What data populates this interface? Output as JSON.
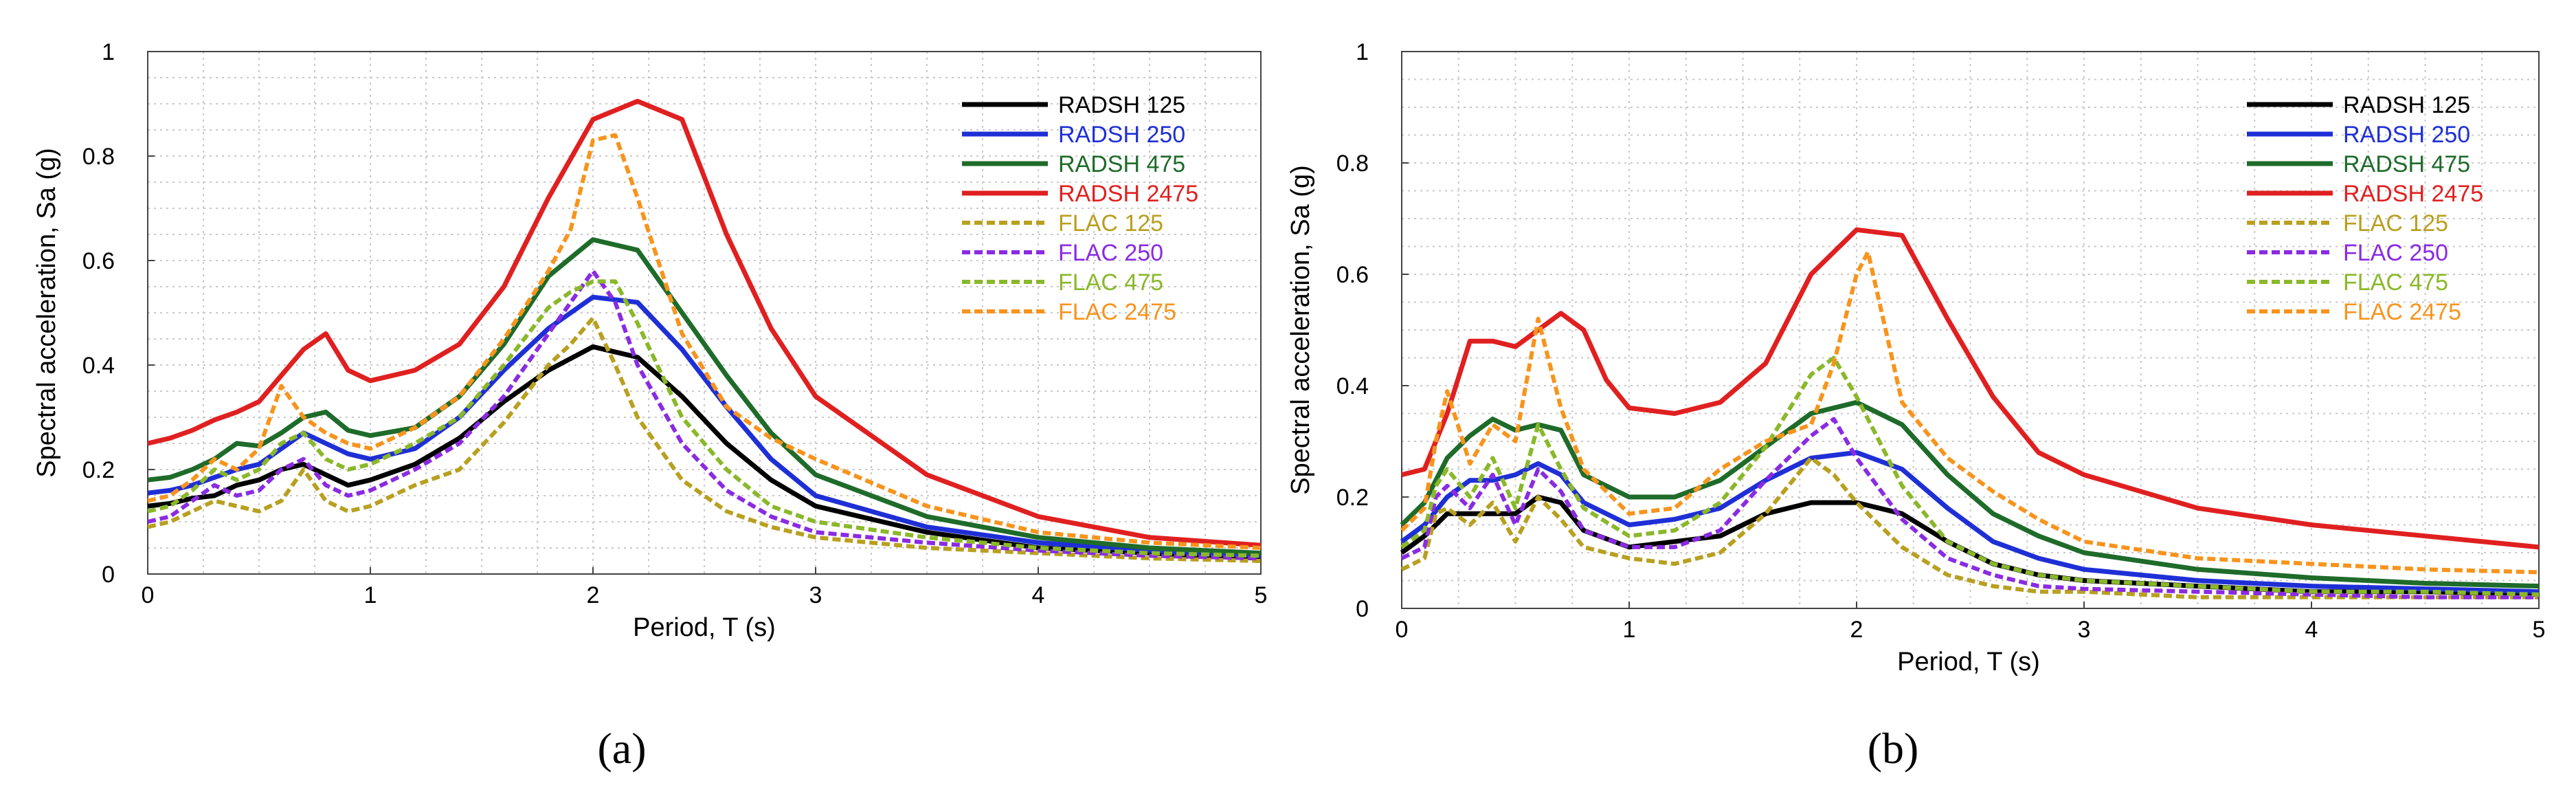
{
  "chart_data": [
    {
      "type": "line",
      "panel_label": "(a)",
      "xlabel": "Period, T (s)",
      "ylabel": "Spectral acceleration, Sa (g)",
      "xlim": [
        0,
        5
      ],
      "ylim": [
        0,
        1
      ],
      "x_ticks": [
        "0",
        "1",
        "2",
        "3",
        "4",
        "5"
      ],
      "y_ticks": [
        "0",
        "0.2",
        "0.4",
        "0.6",
        "0.8",
        "1"
      ],
      "grid": true,
      "legend_position": "top-right",
      "series": [
        {
          "name": "RADSH 125",
          "color": "#000000",
          "dash": "solid",
          "x": [
            0,
            0.1,
            0.2,
            0.3,
            0.4,
            0.5,
            0.6,
            0.7,
            0.8,
            0.9,
            1.0,
            1.2,
            1.4,
            1.6,
            1.8,
            2.0,
            2.2,
            2.4,
            2.6,
            2.8,
            3.0,
            3.5,
            4.0,
            4.5,
            5.0
          ],
          "y": [
            0.13,
            0.135,
            0.145,
            0.15,
            0.17,
            0.18,
            0.2,
            0.21,
            0.19,
            0.17,
            0.18,
            0.21,
            0.26,
            0.33,
            0.39,
            0.435,
            0.415,
            0.34,
            0.25,
            0.18,
            0.13,
            0.08,
            0.05,
            0.04,
            0.03
          ]
        },
        {
          "name": "RADSH 250",
          "color": "#1f2fd6",
          "dash": "solid",
          "x": [
            0,
            0.1,
            0.2,
            0.3,
            0.4,
            0.5,
            0.6,
            0.7,
            0.8,
            0.9,
            1.0,
            1.2,
            1.4,
            1.6,
            1.8,
            2.0,
            2.2,
            2.4,
            2.6,
            2.8,
            3.0,
            3.5,
            4.0,
            4.5,
            5.0
          ],
          "y": [
            0.155,
            0.16,
            0.17,
            0.185,
            0.2,
            0.21,
            0.24,
            0.27,
            0.25,
            0.23,
            0.22,
            0.24,
            0.3,
            0.39,
            0.47,
            0.53,
            0.52,
            0.43,
            0.32,
            0.22,
            0.15,
            0.09,
            0.06,
            0.045,
            0.035
          ]
        },
        {
          "name": "RADSH 475",
          "color": "#1e6b2a",
          "dash": "solid",
          "x": [
            0,
            0.1,
            0.2,
            0.3,
            0.4,
            0.5,
            0.6,
            0.7,
            0.8,
            0.9,
            1.0,
            1.2,
            1.4,
            1.6,
            1.8,
            2.0,
            2.2,
            2.4,
            2.6,
            2.8,
            3.0,
            3.5,
            4.0,
            4.5,
            5.0
          ],
          "y": [
            0.18,
            0.185,
            0.2,
            0.22,
            0.25,
            0.245,
            0.27,
            0.3,
            0.31,
            0.275,
            0.265,
            0.28,
            0.34,
            0.44,
            0.57,
            0.64,
            0.62,
            0.5,
            0.38,
            0.27,
            0.19,
            0.11,
            0.07,
            0.05,
            0.04
          ]
        },
        {
          "name": "RADSH 2475",
          "color": "#e02020",
          "dash": "solid",
          "x": [
            0,
            0.1,
            0.2,
            0.3,
            0.4,
            0.5,
            0.6,
            0.7,
            0.8,
            0.9,
            1.0,
            1.2,
            1.4,
            1.6,
            1.8,
            2.0,
            2.2,
            2.4,
            2.6,
            2.8,
            3.0,
            3.5,
            4.0,
            4.5,
            5.0
          ],
          "y": [
            0.25,
            0.26,
            0.275,
            0.295,
            0.31,
            0.33,
            0.38,
            0.43,
            0.46,
            0.39,
            0.37,
            0.39,
            0.44,
            0.55,
            0.72,
            0.87,
            0.905,
            0.87,
            0.65,
            0.47,
            0.34,
            0.19,
            0.11,
            0.07,
            0.055
          ]
        },
        {
          "name": "FLAC 125",
          "color": "#b8a020",
          "dash": "dash",
          "x": [
            0,
            0.1,
            0.2,
            0.3,
            0.4,
            0.5,
            0.6,
            0.7,
            0.8,
            0.9,
            1.0,
            1.2,
            1.4,
            1.6,
            1.8,
            1.9,
            2.0,
            2.1,
            2.2,
            2.4,
            2.6,
            2.8,
            3.0,
            3.5,
            4.0,
            4.5,
            5.0
          ],
          "y": [
            0.09,
            0.1,
            0.12,
            0.14,
            0.13,
            0.12,
            0.14,
            0.2,
            0.14,
            0.12,
            0.13,
            0.17,
            0.2,
            0.29,
            0.4,
            0.44,
            0.49,
            0.4,
            0.3,
            0.18,
            0.12,
            0.09,
            0.07,
            0.05,
            0.04,
            0.03,
            0.025
          ]
        },
        {
          "name": "FLAC 250",
          "color": "#8a2be2",
          "dash": "dash",
          "x": [
            0,
            0.1,
            0.2,
            0.3,
            0.4,
            0.5,
            0.6,
            0.7,
            0.8,
            0.9,
            1.0,
            1.2,
            1.4,
            1.6,
            1.8,
            1.9,
            2.0,
            2.1,
            2.2,
            2.4,
            2.6,
            2.8,
            3.0,
            3.5,
            4.0,
            4.5,
            5.0
          ],
          "y": [
            0.1,
            0.11,
            0.14,
            0.17,
            0.15,
            0.16,
            0.2,
            0.22,
            0.17,
            0.15,
            0.16,
            0.2,
            0.25,
            0.34,
            0.46,
            0.52,
            0.58,
            0.52,
            0.4,
            0.25,
            0.16,
            0.11,
            0.08,
            0.06,
            0.045,
            0.035,
            0.03
          ]
        },
        {
          "name": "FLAC 475",
          "color": "#8ab82a",
          "dash": "dash",
          "x": [
            0,
            0.1,
            0.2,
            0.3,
            0.4,
            0.5,
            0.6,
            0.7,
            0.8,
            0.9,
            1.0,
            1.2,
            1.4,
            1.6,
            1.8,
            1.9,
            2.0,
            2.1,
            2.2,
            2.4,
            2.6,
            2.8,
            3.0,
            3.5,
            4.0,
            4.5,
            5.0
          ],
          "y": [
            0.12,
            0.13,
            0.16,
            0.2,
            0.18,
            0.2,
            0.25,
            0.27,
            0.22,
            0.2,
            0.21,
            0.25,
            0.3,
            0.4,
            0.51,
            0.54,
            0.56,
            0.56,
            0.48,
            0.3,
            0.2,
            0.13,
            0.1,
            0.07,
            0.05,
            0.04,
            0.035
          ]
        },
        {
          "name": "FLAC 2475",
          "color": "#f7941d",
          "dash": "dash",
          "x": [
            0,
            0.1,
            0.2,
            0.3,
            0.4,
            0.5,
            0.6,
            0.7,
            0.8,
            0.9,
            1.0,
            1.2,
            1.4,
            1.6,
            1.8,
            1.9,
            2.0,
            2.1,
            2.2,
            2.4,
            2.6,
            2.8,
            3.0,
            3.5,
            4.0,
            4.5,
            5.0
          ],
          "y": [
            0.14,
            0.15,
            0.18,
            0.22,
            0.2,
            0.24,
            0.36,
            0.3,
            0.27,
            0.25,
            0.24,
            0.28,
            0.34,
            0.45,
            0.58,
            0.66,
            0.83,
            0.84,
            0.72,
            0.46,
            0.32,
            0.26,
            0.22,
            0.13,
            0.08,
            0.06,
            0.05
          ]
        }
      ]
    },
    {
      "type": "line",
      "panel_label": "(b)",
      "xlabel": "Period, T (s)",
      "ylabel": "Spectral acceleration, Sa (g)",
      "xlim": [
        0,
        5
      ],
      "ylim": [
        0,
        1
      ],
      "x_ticks": [
        "0",
        "1",
        "2",
        "3",
        "4",
        "5"
      ],
      "y_ticks": [
        "0",
        "0.2",
        "0.4",
        "0.6",
        "0.8",
        "1"
      ],
      "grid": true,
      "legend_position": "top-right",
      "series": [
        {
          "name": "RADSH 125",
          "color": "#000000",
          "dash": "solid",
          "x": [
            0,
            0.1,
            0.2,
            0.3,
            0.4,
            0.5,
            0.6,
            0.7,
            0.8,
            1.0,
            1.2,
            1.4,
            1.6,
            1.8,
            2.0,
            2.2,
            2.4,
            2.6,
            2.8,
            3.0,
            3.5,
            4.0,
            4.5,
            5.0
          ],
          "y": [
            0.1,
            0.13,
            0.17,
            0.17,
            0.17,
            0.17,
            0.2,
            0.19,
            0.14,
            0.11,
            0.12,
            0.13,
            0.17,
            0.19,
            0.19,
            0.17,
            0.12,
            0.08,
            0.06,
            0.05,
            0.04,
            0.03,
            0.03,
            0.025
          ]
        },
        {
          "name": "RADSH 250",
          "color": "#1f2fd6",
          "dash": "solid",
          "x": [
            0,
            0.1,
            0.2,
            0.3,
            0.4,
            0.5,
            0.6,
            0.7,
            0.8,
            1.0,
            1.2,
            1.4,
            1.6,
            1.8,
            2.0,
            2.2,
            2.4,
            2.6,
            2.8,
            3.0,
            3.5,
            4.0,
            4.5,
            5.0
          ],
          "y": [
            0.12,
            0.15,
            0.2,
            0.23,
            0.23,
            0.24,
            0.26,
            0.24,
            0.19,
            0.15,
            0.16,
            0.18,
            0.23,
            0.27,
            0.28,
            0.25,
            0.18,
            0.12,
            0.09,
            0.07,
            0.05,
            0.04,
            0.035,
            0.03
          ]
        },
        {
          "name": "RADSH 475",
          "color": "#1e6b2a",
          "dash": "solid",
          "x": [
            0,
            0.1,
            0.2,
            0.3,
            0.4,
            0.5,
            0.6,
            0.7,
            0.8,
            1.0,
            1.2,
            1.4,
            1.6,
            1.8,
            2.0,
            2.2,
            2.4,
            2.6,
            2.8,
            3.0,
            3.5,
            4.0,
            4.5,
            5.0
          ],
          "y": [
            0.15,
            0.19,
            0.27,
            0.31,
            0.34,
            0.32,
            0.33,
            0.32,
            0.24,
            0.2,
            0.2,
            0.23,
            0.29,
            0.35,
            0.37,
            0.33,
            0.24,
            0.17,
            0.13,
            0.1,
            0.07,
            0.055,
            0.045,
            0.04
          ]
        },
        {
          "name": "RADSH 2475",
          "color": "#e02020",
          "dash": "solid",
          "x": [
            0,
            0.1,
            0.2,
            0.3,
            0.4,
            0.5,
            0.6,
            0.7,
            0.8,
            0.9,
            1.0,
            1.2,
            1.4,
            1.6,
            1.8,
            2.0,
            2.2,
            2.4,
            2.6,
            2.8,
            3.0,
            3.5,
            4.0,
            4.5,
            5.0
          ],
          "y": [
            0.24,
            0.25,
            0.35,
            0.48,
            0.48,
            0.47,
            0.5,
            0.53,
            0.5,
            0.41,
            0.36,
            0.35,
            0.37,
            0.44,
            0.6,
            0.68,
            0.67,
            0.52,
            0.38,
            0.28,
            0.24,
            0.18,
            0.15,
            0.13,
            0.11
          ]
        },
        {
          "name": "FLAC 125",
          "color": "#b8a020",
          "dash": "dash",
          "x": [
            0,
            0.1,
            0.15,
            0.2,
            0.3,
            0.4,
            0.5,
            0.6,
            0.7,
            0.8,
            1.0,
            1.2,
            1.4,
            1.6,
            1.8,
            1.9,
            2.0,
            2.2,
            2.4,
            2.6,
            2.8,
            3.0,
            3.5,
            4.0,
            4.5,
            5.0
          ],
          "y": [
            0.07,
            0.09,
            0.17,
            0.18,
            0.15,
            0.19,
            0.12,
            0.2,
            0.16,
            0.11,
            0.09,
            0.08,
            0.1,
            0.17,
            0.27,
            0.24,
            0.19,
            0.11,
            0.06,
            0.04,
            0.03,
            0.03,
            0.02,
            0.02,
            0.02,
            0.02
          ]
        },
        {
          "name": "FLAC 250",
          "color": "#8a2be2",
          "dash": "dash",
          "x": [
            0,
            0.1,
            0.15,
            0.2,
            0.3,
            0.4,
            0.5,
            0.6,
            0.7,
            0.8,
            1.0,
            1.2,
            1.4,
            1.6,
            1.8,
            1.9,
            2.0,
            2.2,
            2.4,
            2.6,
            2.8,
            3.0,
            3.5,
            4.0,
            4.5,
            5.0
          ],
          "y": [
            0.09,
            0.11,
            0.2,
            0.22,
            0.18,
            0.24,
            0.15,
            0.25,
            0.21,
            0.14,
            0.11,
            0.11,
            0.14,
            0.23,
            0.31,
            0.34,
            0.27,
            0.16,
            0.09,
            0.06,
            0.04,
            0.035,
            0.03,
            0.025,
            0.02,
            0.02
          ]
        },
        {
          "name": "FLAC 475",
          "color": "#8ab82a",
          "dash": "dash",
          "x": [
            0,
            0.1,
            0.15,
            0.2,
            0.3,
            0.4,
            0.5,
            0.6,
            0.7,
            0.8,
            1.0,
            1.2,
            1.4,
            1.6,
            1.8,
            1.9,
            2.0,
            2.2,
            2.4,
            2.6,
            2.8,
            3.0,
            3.5,
            4.0,
            4.5,
            5.0
          ],
          "y": [
            0.11,
            0.14,
            0.22,
            0.25,
            0.2,
            0.27,
            0.18,
            0.33,
            0.25,
            0.18,
            0.13,
            0.14,
            0.19,
            0.29,
            0.42,
            0.45,
            0.38,
            0.22,
            0.12,
            0.08,
            0.06,
            0.05,
            0.04,
            0.03,
            0.03,
            0.025
          ]
        },
        {
          "name": "FLAC 2475",
          "color": "#f7941d",
          "dash": "dash",
          "x": [
            0,
            0.1,
            0.15,
            0.2,
            0.3,
            0.4,
            0.5,
            0.6,
            0.7,
            0.8,
            1.0,
            1.2,
            1.4,
            1.6,
            1.8,
            1.9,
            2.0,
            2.05,
            2.2,
            2.4,
            2.6,
            2.8,
            3.0,
            3.5,
            4.0,
            4.5,
            5.0
          ],
          "y": [
            0.14,
            0.18,
            0.3,
            0.39,
            0.26,
            0.33,
            0.3,
            0.52,
            0.36,
            0.25,
            0.17,
            0.18,
            0.25,
            0.3,
            0.33,
            0.44,
            0.6,
            0.64,
            0.37,
            0.27,
            0.21,
            0.16,
            0.12,
            0.09,
            0.08,
            0.07,
            0.065
          ]
        }
      ]
    }
  ]
}
